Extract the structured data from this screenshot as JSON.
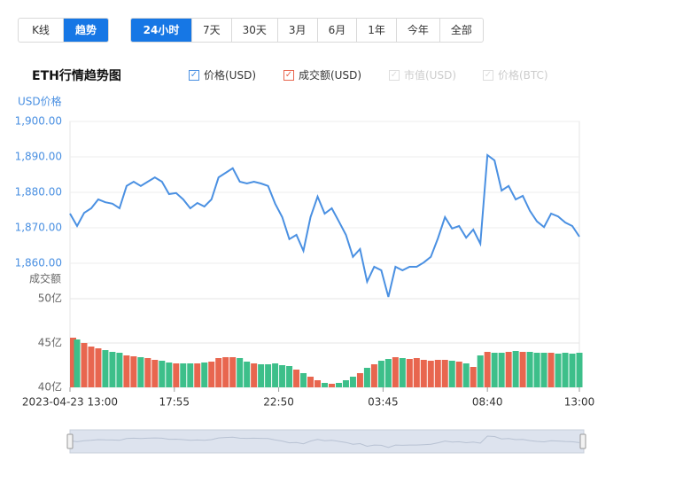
{
  "tabs": {
    "modes": [
      "K线",
      "趋势"
    ],
    "active_mode_index": 1,
    "ranges": [
      "24小时",
      "7天",
      "30天",
      "3月",
      "6月",
      "1年",
      "今年",
      "全部"
    ],
    "active_range_index": 0
  },
  "chart_data": {
    "type": "line",
    "title": "ETH行情趋势图",
    "legend_inactive": [
      "市值(USD)",
      "价格(BTC)"
    ],
    "y_label": "USD价格",
    "y2_label": "成交额",
    "x": [
      0,
      20,
      40,
      60,
      80,
      100,
      120,
      140,
      160,
      180,
      200,
      220,
      240,
      260,
      280,
      300,
      320,
      340,
      360,
      380,
      400,
      420,
      440,
      460,
      480,
      500,
      520,
      540,
      560,
      580,
      600,
      620,
      640,
      660,
      680,
      700,
      720,
      740,
      760,
      780,
      800,
      820,
      840,
      860,
      880,
      900,
      920,
      940,
      960,
      980,
      1000,
      1020,
      1040,
      1060,
      1080,
      1100,
      1120,
      1140,
      1160,
      1180,
      1200,
      1220,
      1240,
      1260,
      1280,
      1300,
      1320,
      1340,
      1360,
      1380,
      1400,
      1420,
      1440
    ],
    "xlim": [
      0,
      1440
    ],
    "xticks": [
      {
        "value": 0,
        "label": "2023-04-23 13:00"
      },
      {
        "value": 295,
        "label": "17:55"
      },
      {
        "value": 590,
        "label": "22:50"
      },
      {
        "value": 885,
        "label": "03:45"
      },
      {
        "value": 1180,
        "label": "08:40"
      },
      {
        "value": 1440,
        "label": "13:00"
      }
    ],
    "series": [
      {
        "name": "价格(USD)",
        "color": "#4a90e2",
        "values": [
          1874,
          1870.5,
          1874.2,
          1875.5,
          1878,
          1877.2,
          1876.8,
          1875.5,
          1881.8,
          1883,
          1881.8,
          1883,
          1884.2,
          1883,
          1879.5,
          1879.8,
          1878,
          1875.5,
          1877,
          1876,
          1878,
          1884.2,
          1885.5,
          1886.8,
          1883,
          1882.5,
          1883,
          1882.5,
          1881.8,
          1876.8,
          1873,
          1866.8,
          1868,
          1863.5,
          1873,
          1878.8,
          1874,
          1875.5,
          1871.8,
          1868,
          1861.8,
          1864,
          1854.8,
          1859,
          1858,
          1850.5,
          1859,
          1858,
          1859,
          1859,
          1860.2,
          1861.8,
          1867,
          1873,
          1869.8,
          1870.5,
          1867.2,
          1869.5,
          1865.5,
          1890.5,
          1889,
          1880.5,
          1881.8,
          1878,
          1879,
          1874.8,
          1871.8,
          1870.2,
          1874,
          1873.2,
          1871.5,
          1870.5,
          1867.5
        ]
      },
      {
        "name": "成交额(USD)",
        "type": "bar",
        "axis": "y2",
        "color": "#e8664f",
        "down_color": "#3dbf8a",
        "values": [
          45.6,
          45.4,
          45.0,
          44.6,
          44.4,
          44.2,
          44.0,
          43.9,
          43.6,
          43.5,
          43.4,
          43.3,
          43.1,
          43.0,
          42.8,
          42.7,
          42.7,
          42.7,
          42.7,
          42.8,
          42.9,
          43.3,
          43.4,
          43.4,
          43.3,
          42.9,
          42.7,
          42.6,
          42.6,
          42.7,
          42.5,
          42.4,
          42.0,
          41.6,
          41.2,
          40.8,
          40.5,
          40.4,
          40.5,
          40.8,
          41.2,
          41.6,
          42.2,
          42.6,
          43.0,
          43.2,
          43.4,
          43.3,
          43.2,
          43.3,
          43.1,
          43.0,
          43.1,
          43.1,
          43.0,
          42.9,
          42.7,
          42.3,
          43.6,
          44.0,
          43.9,
          43.9,
          44.0,
          44.1,
          44.0,
          44.0,
          43.9,
          43.9,
          43.9,
          43.8,
          43.9,
          43.8,
          43.9
        ]
      }
    ],
    "ylim": [
      1850,
      1900
    ],
    "yticks": [
      {
        "value": 1860,
        "label": "1,860.00"
      },
      {
        "value": 1870,
        "label": "1,870.00"
      },
      {
        "value": 1880,
        "label": "1,880.00"
      },
      {
        "value": 1890,
        "label": "1,890.00"
      },
      {
        "value": 1900,
        "label": "1,900.00"
      }
    ],
    "y2lim": [
      40,
      50
    ],
    "y2ticks": [
      {
        "value": 40,
        "label": "40亿"
      },
      {
        "value": 45,
        "label": "45亿"
      },
      {
        "value": 50,
        "label": "50亿"
      }
    ],
    "grid": true
  }
}
